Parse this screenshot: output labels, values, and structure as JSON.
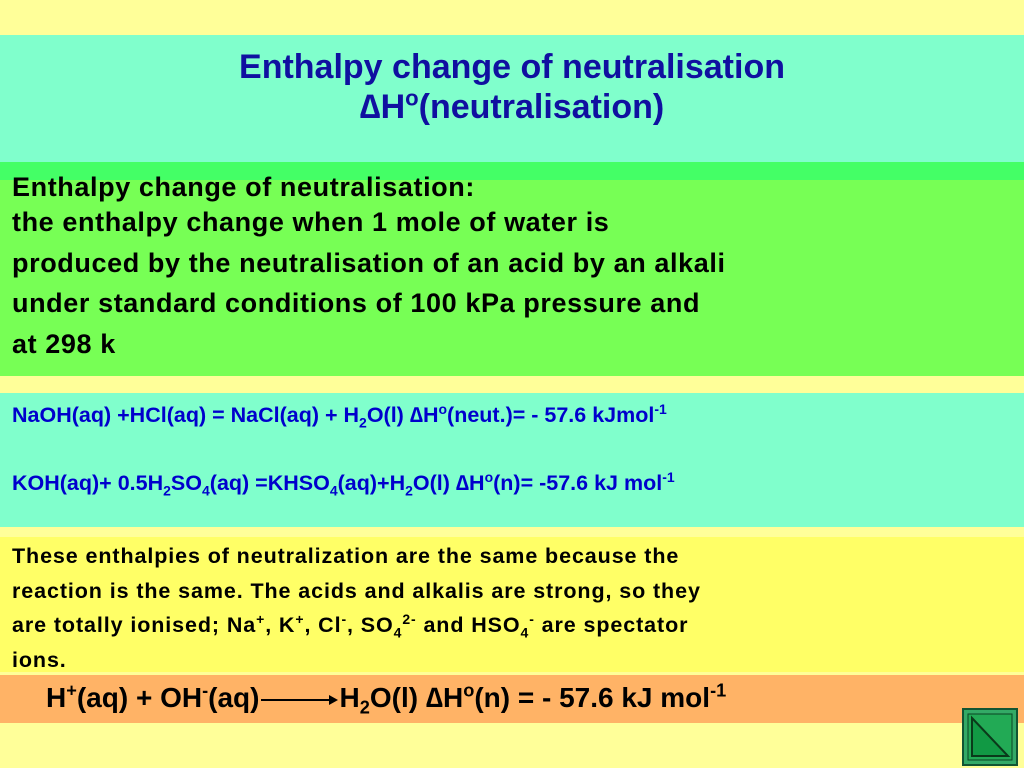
{
  "title": {
    "line1": "Enthalpy change of neutralisation",
    "line2": [
      {
        "text": "∆H"
      },
      {
        "text": "o",
        "script": "sup"
      },
      {
        "text": "(neutralisation)"
      }
    ]
  },
  "definition": {
    "heading": "Enthalpy change of neutralisation:",
    "lines": [
      "the enthalpy change when 1 mole of water is",
      "produced by the neutralisation of an acid by an alkali",
      "under standard conditions of 100 kPa pressure and",
      "at 298 k"
    ]
  },
  "equations": [
    [
      {
        "text": "NaOH(aq) +HCl(aq) = NaCl(aq) + H"
      },
      {
        "text": "2",
        "script": "sub"
      },
      {
        "text": "O(l) ∆H"
      },
      {
        "text": "o",
        "script": "sup"
      },
      {
        "text": "(neut.)= - 57.6 kJmol"
      },
      {
        "text": "-1",
        "script": "sup"
      }
    ],
    [
      {
        "text": "KOH(aq)+ 0.5H"
      },
      {
        "text": "2",
        "script": "sub"
      },
      {
        "text": "SO"
      },
      {
        "text": "4",
        "script": "sub"
      },
      {
        "text": "(aq) =KHSO"
      },
      {
        "text": "4",
        "script": "sub"
      },
      {
        "text": "(aq)+H"
      },
      {
        "text": "2",
        "script": "sub"
      },
      {
        "text": "O(l) ∆H"
      },
      {
        "text": "o",
        "script": "sup"
      },
      {
        "text": "(n)= -57.6 kJ mol"
      },
      {
        "text": "-1",
        "script": "sup"
      }
    ]
  ],
  "explanation": [
    [
      {
        "text": "These enthalpies of neutralization are the same because the"
      }
    ],
    [
      {
        "text": "reaction is the same. The acids and alkalis are strong, so they"
      }
    ],
    [
      {
        "text": "are totally ionised; Na"
      },
      {
        "text": "+",
        "script": "sup"
      },
      {
        "text": ", K"
      },
      {
        "text": "+",
        "script": "sup"
      },
      {
        "text": ", Cl"
      },
      {
        "text": "-",
        "script": "sup"
      },
      {
        "text": ", SO"
      },
      {
        "text": "4",
        "script": "sub"
      },
      {
        "text": "2-",
        "script": "sup"
      },
      {
        "text": " and HSO"
      },
      {
        "text": "4",
        "script": "sub"
      },
      {
        "text": "-",
        "script": "sup"
      },
      {
        "text": " are spectator"
      }
    ],
    [
      {
        "text": "ions."
      }
    ]
  ],
  "ionic_equation": {
    "reactants": [
      {
        "text": "H"
      },
      {
        "text": "+",
        "script": "sup"
      },
      {
        "text": "(aq) + OH"
      },
      {
        "text": "-",
        "script": "sup"
      },
      {
        "text": "(aq)"
      }
    ],
    "products": [
      {
        "text": "H"
      },
      {
        "text": "2",
        "script": "sub"
      },
      {
        "text": "O(l) ∆H"
      },
      {
        "text": "o",
        "script": "sup"
      },
      {
        "text": "(n) = - 57.6 kJ mol"
      },
      {
        "text": "-1",
        "script": "sup"
      }
    ]
  }
}
